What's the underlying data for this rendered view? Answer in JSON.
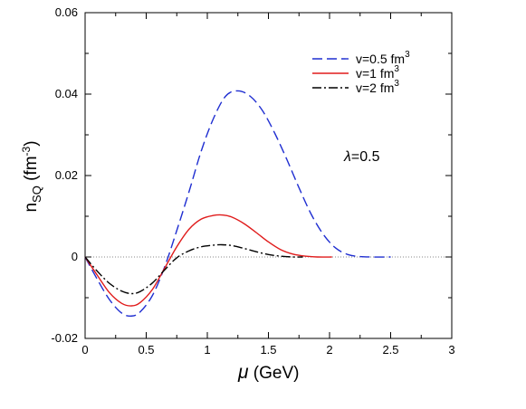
{
  "chart_data": {
    "type": "line",
    "xlabel": {
      "symbol": "μ",
      "text": " (GeV)"
    },
    "ylabel": {
      "base": "n",
      "sub": "SQ",
      "unit_open": " (fm",
      "unit_sup": "-3",
      "unit_close": ")"
    },
    "xlim": [
      0,
      3
    ],
    "ylim": [
      -0.02,
      0.06
    ],
    "xticks": [
      0,
      0.5,
      1,
      1.5,
      2,
      2.5,
      3
    ],
    "xtick_labels": [
      "0",
      "0.5",
      "1",
      "1.5",
      "2",
      "2.5",
      "3"
    ],
    "yticks": [
      -0.02,
      0,
      0.02,
      0.04,
      0.06
    ],
    "ytick_labels": [
      "-0.02",
      "0",
      "0.02",
      "0.04",
      "0.06"
    ],
    "grid": false,
    "legend_position": "top-right",
    "annotation": {
      "symbol": "λ",
      "text": "=0.5"
    },
    "zero_line": true,
    "series": [
      {
        "name": "v=0.5 fm",
        "name_sup": "3",
        "color": "#1f2ed1",
        "style": "dashed",
        "x": [
          0,
          0.1,
          0.2,
          0.3,
          0.38,
          0.45,
          0.55,
          0.65,
          0.75,
          0.85,
          0.95,
          1.05,
          1.15,
          1.25,
          1.35,
          1.45,
          1.55,
          1.65,
          1.75,
          1.85,
          1.95,
          2.05,
          2.15,
          2.25,
          2.35,
          2.5
        ],
        "y": [
          0,
          -0.0055,
          -0.0105,
          -0.0138,
          -0.0145,
          -0.0135,
          -0.0095,
          -0.0025,
          0.0065,
          0.016,
          0.026,
          0.034,
          0.0395,
          0.0408,
          0.0395,
          0.036,
          0.0305,
          0.024,
          0.017,
          0.0105,
          0.0055,
          0.0022,
          0.0006,
          0.0001,
          0,
          0
        ]
      },
      {
        "name": "v=1 fm",
        "name_sup": "3",
        "color": "#e01b1b",
        "style": "solid",
        "x": [
          0,
          0.1,
          0.2,
          0.3,
          0.38,
          0.45,
          0.55,
          0.65,
          0.75,
          0.85,
          0.95,
          1.05,
          1.13,
          1.2,
          1.3,
          1.4,
          1.5,
          1.6,
          1.7,
          1.8,
          1.9,
          2.02
        ],
        "y": [
          0,
          -0.0045,
          -0.0088,
          -0.0114,
          -0.012,
          -0.0112,
          -0.008,
          -0.0028,
          0.0025,
          0.0068,
          0.0093,
          0.0102,
          0.0103,
          0.0098,
          0.0082,
          0.006,
          0.0037,
          0.0018,
          0.0007,
          0.0002,
          0,
          0
        ]
      },
      {
        "name": "v=2 fm",
        "name_sup": "3",
        "color": "#000000",
        "style": "dashdot",
        "x": [
          0,
          0.1,
          0.2,
          0.3,
          0.38,
          0.45,
          0.55,
          0.65,
          0.75,
          0.85,
          0.95,
          1.05,
          1.12,
          1.2,
          1.3,
          1.4,
          1.5,
          1.6,
          1.7,
          1.78
        ],
        "y": [
          0,
          -0.0035,
          -0.0065,
          -0.0084,
          -0.009,
          -0.0085,
          -0.0064,
          -0.0032,
          -0.0002,
          0.0015,
          0.0025,
          0.0029,
          0.003,
          0.0028,
          0.0021,
          0.0013,
          0.0006,
          0.0002,
          0,
          0
        ]
      }
    ]
  }
}
